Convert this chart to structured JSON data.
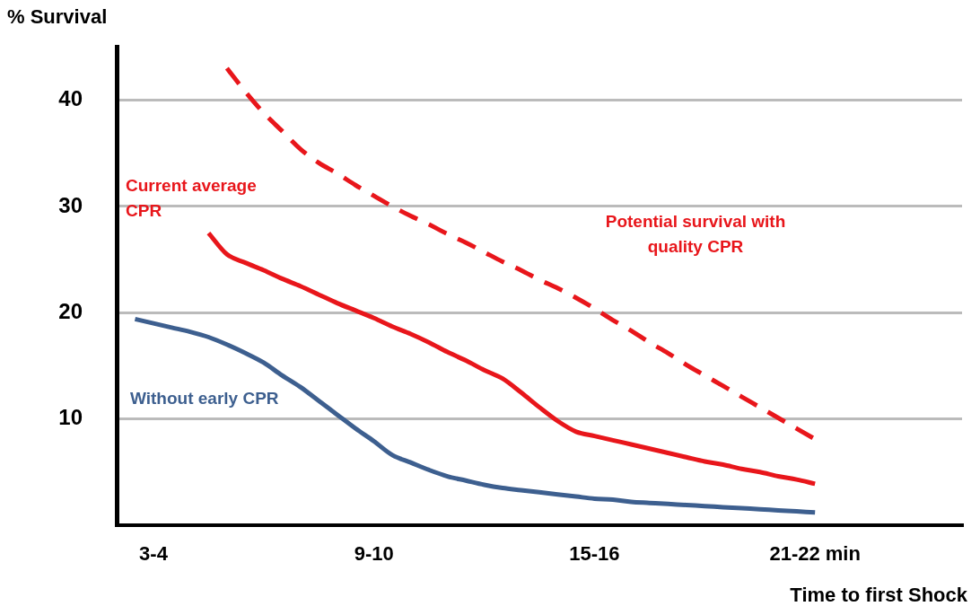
{
  "chart_data": {
    "type": "line",
    "ylabel": "% Survival",
    "xlabel": "Time to first Shock",
    "categories": [
      null,
      null,
      "3-4",
      null,
      null,
      null,
      null,
      null,
      null,
      null,
      null,
      null,
      null,
      null,
      "9-10",
      null,
      null,
      null,
      null,
      null,
      null,
      null,
      null,
      null,
      null,
      null,
      "15-16",
      null,
      null,
      null,
      null,
      null,
      null,
      null,
      null,
      null,
      null,
      null,
      "21-22 min",
      null,
      null,
      null,
      null,
      null,
      null,
      null,
      null
    ],
    "ylim": [
      0,
      45
    ],
    "yticks": [
      10,
      20,
      30,
      40
    ],
    "grid": "y",
    "legend": false,
    "marker": "none",
    "series": [
      {
        "name": "Potential survival with quality CPR",
        "color": "#e8161b",
        "line_style": "dashed",
        "values": [
          null,
          null,
          null,
          null,
          null,
          null,
          43.0,
          40.8,
          38.8,
          37.1,
          35.4,
          34.1,
          33.1,
          32.0,
          31.0,
          30.0,
          29.1,
          28.3,
          27.4,
          26.6,
          25.7,
          24.8,
          24.0,
          23.1,
          22.3,
          21.4,
          20.4,
          19.3,
          18.3,
          17.2,
          16.2,
          15.1,
          14.1,
          13.1,
          12.1,
          11.1,
          10.1,
          9.1,
          8.1,
          null,
          null,
          null,
          null,
          null,
          null,
          null,
          null
        ]
      },
      {
        "name": "Current average CPR",
        "color": "#e8161b",
        "line_style": "solid",
        "values": [
          null,
          null,
          null,
          null,
          null,
          27.5,
          25.5,
          24.7,
          24.0,
          23.2,
          22.5,
          21.7,
          20.9,
          20.2,
          19.5,
          18.7,
          18.0,
          17.2,
          16.3,
          15.5,
          14.6,
          13.8,
          12.5,
          11.1,
          9.8,
          8.8,
          8.4,
          8.0,
          7.6,
          7.2,
          6.8,
          6.4,
          6.0,
          5.7,
          5.3,
          5.0,
          4.6,
          4.3,
          3.9,
          null,
          null,
          null,
          null,
          null,
          null,
          null,
          null
        ]
      },
      {
        "name": "Without early CPR",
        "color": "#3d5f8f",
        "line_style": "solid",
        "values": [
          null,
          19.4,
          19.0,
          18.6,
          18.2,
          17.7,
          17.0,
          16.2,
          15.3,
          14.1,
          13.0,
          11.7,
          10.4,
          9.1,
          7.9,
          6.6,
          5.9,
          5.2,
          4.6,
          4.2,
          3.8,
          3.5,
          3.3,
          3.1,
          2.9,
          2.7,
          2.5,
          2.4,
          2.2,
          2.1,
          2.0,
          1.9,
          1.8,
          1.7,
          1.6,
          1.5,
          1.4,
          1.3,
          1.2,
          null,
          null,
          null,
          null,
          null,
          null,
          null,
          null
        ]
      }
    ]
  }
}
